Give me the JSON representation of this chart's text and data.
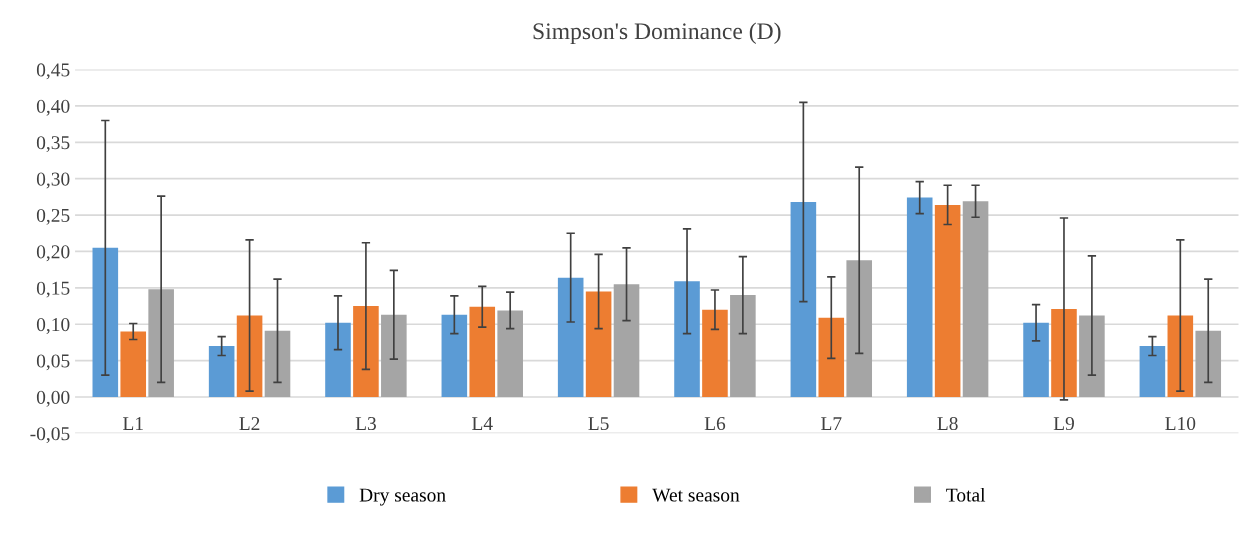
{
  "chart_data": {
    "type": "bar",
    "title": "Simpson's Dominance (D)",
    "categories": [
      "L1",
      "L2",
      "L3",
      "L4",
      "L5",
      "L6",
      "L7",
      "L8",
      "L9",
      "L10"
    ],
    "series": [
      {
        "name": "Dry season",
        "color": "#5b9bd5",
        "values": [
          0.205,
          0.07,
          0.102,
          0.113,
          0.164,
          0.159,
          0.268,
          0.274,
          0.102,
          0.07
        ],
        "errors": [
          0.175,
          0.013,
          0.037,
          0.026,
          0.061,
          0.072,
          0.137,
          0.022,
          0.025,
          0.013
        ]
      },
      {
        "name": "Wet season",
        "color": "#ed7d31",
        "values": [
          0.09,
          0.112,
          0.125,
          0.124,
          0.145,
          0.12,
          0.109,
          0.264,
          0.121,
          0.112
        ],
        "errors": [
          0.011,
          0.104,
          0.087,
          0.028,
          0.051,
          0.027,
          0.056,
          0.027,
          0.125,
          0.104
        ]
      },
      {
        "name": "Total",
        "color": "#a5a5a5",
        "values": [
          0.148,
          0.091,
          0.113,
          0.119,
          0.155,
          0.14,
          0.188,
          0.269,
          0.112,
          0.091
        ],
        "errors": [
          0.128,
          0.071,
          0.061,
          0.025,
          0.05,
          0.053,
          0.128,
          0.022,
          0.082,
          0.071
        ]
      }
    ],
    "ylim": [
      -0.05,
      0.45
    ],
    "yticks": [
      {
        "value": -0.05,
        "label": "-0,05"
      },
      {
        "value": 0,
        "label": "0,00"
      },
      {
        "value": 0.05,
        "label": "0,05"
      },
      {
        "value": 0.1,
        "label": "0,10"
      },
      {
        "value": 0.15,
        "label": "0,15"
      },
      {
        "value": 0.2,
        "label": "0,20"
      },
      {
        "value": 0.25,
        "label": "0,25"
      },
      {
        "value": 0.3,
        "label": "0,30"
      },
      {
        "value": 0.35,
        "label": "0,35"
      },
      {
        "value": 0.4,
        "label": "0,40"
      },
      {
        "value": 0.45,
        "label": "0,45"
      }
    ],
    "grid": "y",
    "legend": "bottom"
  }
}
